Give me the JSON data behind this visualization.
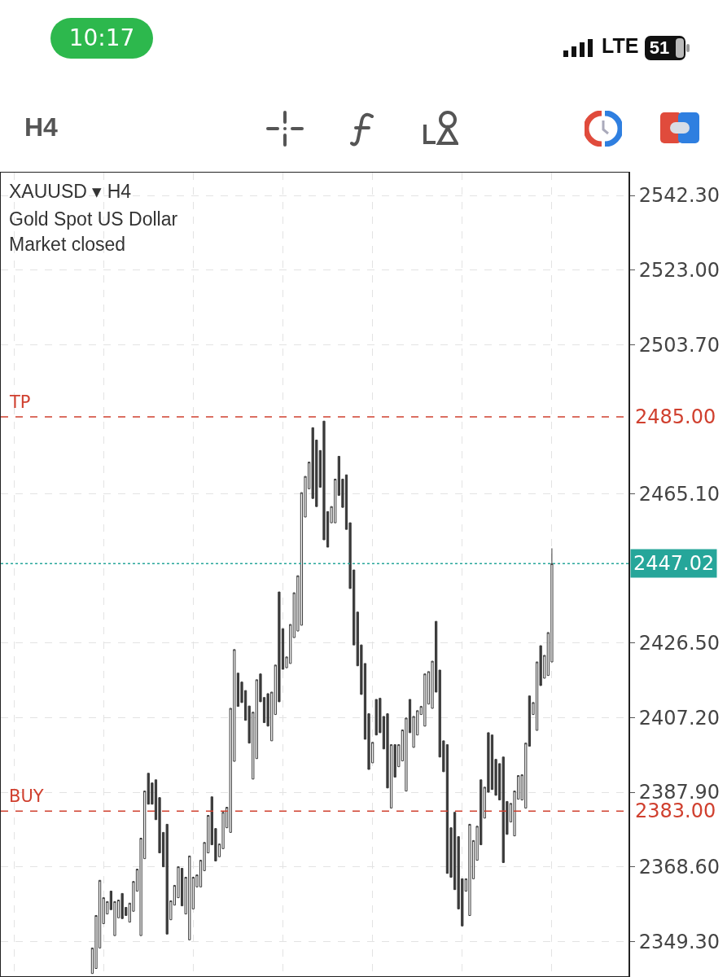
{
  "chart_data": {
    "type": "candlestick",
    "title": "XAUUSD ▾ H4",
    "subtitle": "Gold Spot US Dollar",
    "annotations": [
      "Market closed",
      "H4",
      "10:17",
      "LTE",
      "51",
      {
        "text": "TP",
        "y": 2485
      },
      {
        "text": "BUY",
        "y": 2383
      }
    ],
    "categories": [
      null,
      null,
      null,
      null,
      null,
      null,
      null,
      null,
      null,
      null,
      null,
      null,
      null,
      null,
      null,
      null,
      null,
      null,
      null,
      null,
      null,
      null,
      null,
      null,
      null,
      null,
      null,
      null,
      null,
      null,
      null,
      null,
      null,
      null,
      null,
      null,
      null,
      null,
      null,
      null,
      null,
      null,
      null,
      null,
      null,
      null,
      null,
      null,
      null,
      null,
      null,
      null,
      null,
      null,
      null,
      null,
      null,
      null,
      null,
      null,
      null,
      null,
      null,
      null,
      null,
      null,
      null,
      null,
      null,
      null,
      null,
      null,
      null,
      null,
      null,
      null,
      null,
      null,
      null,
      null,
      null,
      null,
      null,
      null,
      null,
      null,
      null,
      null,
      null,
      null,
      null,
      null,
      null,
      null,
      null,
      null,
      null,
      null,
      null,
      null,
      null,
      null,
      null,
      null,
      null,
      null,
      null,
      null,
      null,
      null,
      null,
      null,
      null,
      null,
      null,
      null,
      null,
      null,
      null,
      null,
      null,
      null,
      null,
      null,
      null,
      null,
      null,
      null,
      null,
      null,
      null,
      null,
      null,
      null,
      null,
      null,
      null,
      null,
      null,
      null,
      null,
      null,
      null,
      null,
      null,
      null,
      null,
      null,
      null,
      null,
      null,
      null,
      null,
      null,
      null,
      null,
      null,
      null,
      null,
      null,
      null,
      null,
      null,
      null,
      null,
      null,
      null,
      null
    ],
    "color": "#3a3a3a",
    "ohlc": [
      null,
      null,
      null,
      null,
      null,
      null,
      null,
      null,
      null,
      null,
      null,
      null,
      null,
      null,
      null,
      null,
      null,
      null,
      null,
      null,
      null,
      null,
      null,
      null,
      [
        2341.0,
        2347.6,
        2341.0,
        2347.6
      ],
      [
        2342.3,
        2356.0,
        2342.3,
        2356.0
      ],
      [
        2347.6,
        2365.1,
        2347.6,
        2365.1
      ],
      [
        2353.9,
        2360.6,
        2353.9,
        2360.6
      ],
      [
        2356.4,
        2359.6,
        2356.4,
        2359.6
      ],
      [
        2362.3,
        2362.3,
        2357.5,
        2357.5
      ],
      [
        2350.8,
        2359.6,
        2350.8,
        2359.6
      ],
      [
        2355.4,
        2360.0,
        2355.4,
        2360.0
      ],
      [
        2361.7,
        2361.7,
        2355.2,
        2355.2
      ],
      [
        2358.1,
        2358.1,
        2356.0,
        2356.0
      ],
      [
        2354.3,
        2359.2,
        2354.3,
        2359.2
      ],
      [
        2357.1,
        2364.8,
        2357.1,
        2364.8
      ],
      [
        2362.3,
        2368.0,
        2362.3,
        2368.0
      ],
      [
        2350.8,
        2376.0,
        2350.8,
        2376.0
      ],
      [
        2370.7,
        2388.2,
        2370.7,
        2388.2
      ],
      [
        2392.8,
        2392.8,
        2384.8,
        2384.8
      ],
      [
        2390.3,
        2390.3,
        2384.8,
        2384.8
      ],
      [
        2391.1,
        2391.1,
        2380.8,
        2380.8
      ],
      [
        2386.5,
        2386.5,
        2372.2,
        2372.2
      ],
      [
        2377.5,
        2377.5,
        2368.6,
        2368.6
      ],
      [
        2379.6,
        2379.6,
        2351.2,
        2351.2
      ],
      [
        2354.9,
        2359.8,
        2354.9,
        2359.8
      ],
      [
        2358.7,
        2363.8,
        2358.7,
        2363.8
      ],
      [
        2360.6,
        2368.6,
        2360.6,
        2368.6
      ],
      [
        2368.2,
        2368.2,
        2358.5,
        2358.5
      ],
      [
        2356.4,
        2365.9,
        2356.4,
        2365.9
      ],
      [
        2349.7,
        2371.4,
        2349.7,
        2371.4
      ],
      [
        2357.7,
        2365.9,
        2357.7,
        2365.9
      ],
      [
        2363.4,
        2366.5,
        2363.4,
        2366.5
      ],
      [
        2363.4,
        2370.3,
        2363.4,
        2370.3
      ],
      [
        2367.6,
        2374.9,
        2367.6,
        2374.9
      ],
      [
        2372.2,
        2381.9,
        2372.2,
        2381.9
      ],
      [
        2386.7,
        2386.7,
        2374.3,
        2374.3
      ],
      [
        2378.5,
        2378.5,
        2370.1,
        2370.1
      ],
      [
        2371.2,
        2374.5,
        2371.2,
        2374.5
      ],
      [
        2373.3,
        2382.7,
        2373.3,
        2382.7
      ],
      [
        2378.7,
        2384.0,
        2378.7,
        2384.0
      ],
      [
        2377.5,
        2409.6,
        2377.5,
        2409.6
      ],
      [
        2395.9,
        2424.8,
        2395.9,
        2424.8
      ],
      [
        2418.7,
        2418.7,
        2410.1,
        2410.1
      ],
      [
        2416.4,
        2416.4,
        2411.1,
        2411.1
      ],
      [
        2414.2,
        2414.2,
        2406.5,
        2406.5
      ],
      [
        2410.2,
        2410.2,
        2400.6,
        2400.6
      ],
      [
        2391.3,
        2408.6,
        2391.3,
        2408.6
      ],
      [
        2396.6,
        2417.0,
        2396.6,
        2417.0
      ],
      [
        2418.5,
        2418.5,
        2411.3,
        2411.3
      ],
      [
        2412.4,
        2412.4,
        2405.9,
        2405.9
      ],
      [
        2413.4,
        2413.4,
        2405.0,
        2405.0
      ],
      [
        2401.2,
        2413.8,
        2401.2,
        2413.8
      ],
      [
        2408.0,
        2420.8,
        2408.0,
        2420.8
      ],
      [
        2439.7,
        2439.7,
        2411.3,
        2411.3
      ],
      [
        2430.2,
        2430.2,
        2419.7,
        2419.7
      ],
      [
        2420.1,
        2422.9,
        2420.1,
        2422.9
      ],
      [
        2421.2,
        2431.3,
        2421.2,
        2431.3
      ],
      [
        2427.9,
        2439.5,
        2427.9,
        2439.5
      ],
      [
        2429.6,
        2443.9,
        2429.6,
        2443.9
      ],
      [
        2431.1,
        2465.4,
        2431.1,
        2465.4
      ],
      [
        2459.1,
        2469.6,
        2459.1,
        2469.6
      ],
      [
        2466.4,
        2473.3,
        2466.4,
        2473.3
      ],
      [
        2482.2,
        2482.2,
        2463.9,
        2463.9
      ],
      [
        2479.0,
        2479.0,
        2461.8,
        2461.8
      ],
      [
        2476.3,
        2476.3,
        2466.8,
        2466.8
      ],
      [
        2483.9,
        2483.9,
        2453.2,
        2453.2
      ],
      [
        2460.5,
        2460.5,
        2451.3,
        2451.3
      ],
      [
        2457.6,
        2461.8,
        2457.6,
        2461.8
      ],
      [
        2457.6,
        2468.9,
        2457.6,
        2468.9
      ],
      [
        2474.8,
        2474.8,
        2464.7,
        2464.7
      ],
      [
        2468.9,
        2468.9,
        2461.6,
        2461.6
      ],
      [
        2470.0,
        2470.0,
        2455.9,
        2455.9
      ],
      [
        2457.6,
        2457.6,
        2440.6,
        2440.6
      ],
      [
        2445.4,
        2445.4,
        2426.0,
        2426.0
      ],
      [
        2434.5,
        2434.5,
        2420.6,
        2420.6
      ],
      [
        2426.0,
        2426.0,
        2413.2,
        2413.2
      ],
      [
        2421.2,
        2421.2,
        2401.6,
        2401.6
      ],
      [
        2408.2,
        2408.2,
        2393.8,
        2393.8
      ],
      [
        2395.5,
        2400.8,
        2395.5,
        2400.8
      ],
      [
        2411.9,
        2411.9,
        2402.7,
        2402.7
      ],
      [
        2412.2,
        2412.2,
        2403.3,
        2403.3
      ],
      [
        2407.5,
        2407.5,
        2399.1,
        2399.1
      ],
      [
        2408.2,
        2408.2,
        2389.0,
        2389.0
      ],
      [
        2383.8,
        2400.2,
        2383.8,
        2400.2
      ],
      [
        2400.2,
        2400.2,
        2391.8,
        2391.8
      ],
      [
        2394.5,
        2400.2,
        2394.5,
        2400.2
      ],
      [
        2396.0,
        2404.0,
        2396.0,
        2404.0
      ],
      [
        2388.2,
        2407.1,
        2388.2,
        2407.1
      ],
      [
        2411.9,
        2411.9,
        2403.3,
        2403.3
      ],
      [
        2399.5,
        2407.5,
        2399.5,
        2407.5
      ],
      [
        2402.7,
        2409.0,
        2402.7,
        2409.0
      ],
      [
        2408.0,
        2410.1,
        2408.0,
        2410.1
      ],
      [
        2405.0,
        2418.5,
        2405.0,
        2418.5
      ],
      [
        2410.7,
        2419.1,
        2410.7,
        2419.1
      ],
      [
        2409.6,
        2421.8,
        2409.6,
        2421.8
      ],
      [
        2432.1,
        2432.1,
        2413.8,
        2413.8
      ],
      [
        2419.5,
        2419.5,
        2397.0,
        2397.0
      ],
      [
        2401.2,
        2401.2,
        2393.2,
        2393.2
      ],
      [
        2400.2,
        2400.2,
        2366.9,
        2366.9
      ],
      [
        2378.7,
        2378.7,
        2365.9,
        2365.9
      ],
      [
        2382.7,
        2382.7,
        2362.7,
        2362.7
      ],
      [
        2376.4,
        2376.4,
        2357.7,
        2357.7
      ],
      [
        2365.5,
        2365.5,
        2353.3,
        2353.3
      ],
      [
        2362.3,
        2365.5,
        2362.3,
        2365.5
      ],
      [
        2356.0,
        2379.6,
        2356.0,
        2379.6
      ],
      [
        2365.5,
        2375.4,
        2365.5,
        2375.4
      ],
      [
        2370.3,
        2379.1,
        2370.3,
        2379.1
      ],
      [
        2391.1,
        2391.1,
        2374.3,
        2374.3
      ],
      [
        2381.2,
        2389.2,
        2381.2,
        2389.2
      ],
      [
        2403.3,
        2403.3,
        2387.9,
        2387.9
      ],
      [
        2402.7,
        2402.7,
        2388.6,
        2388.6
      ],
      [
        2396.4,
        2396.4,
        2387.1,
        2387.1
      ],
      [
        2395.3,
        2395.3,
        2385.9,
        2385.9
      ],
      [
        2397.0,
        2397.0,
        2369.7,
        2369.7
      ],
      [
        2385.5,
        2385.5,
        2377.0,
        2377.0
      ],
      [
        2380.2,
        2385.0,
        2380.2,
        2385.0
      ],
      [
        2376.6,
        2388.2,
        2376.6,
        2388.2
      ],
      [
        2386.1,
        2392.2,
        2386.1,
        2392.2
      ],
      [
        2385.9,
        2392.4,
        2385.9,
        2392.4
      ],
      [
        2383.8,
        2400.6,
        2383.8,
        2400.6
      ],
      [
        2412.8,
        2412.8,
        2399.8,
        2399.8
      ],
      [
        2408.0,
        2411.1,
        2408.0,
        2411.1
      ],
      [
        2403.9,
        2421.6,
        2403.9,
        2421.6
      ],
      [
        2425.8,
        2425.8,
        2415.5,
        2415.5
      ],
      [
        2417.4,
        2423.3,
        2417.4,
        2423.3
      ],
      [
        2418.1,
        2429.2,
        2418.1,
        2429.2
      ],
      [
        2421.6,
        2451.0,
        2421.6,
        2447.02
      ],
      null,
      null,
      null,
      null,
      null,
      null,
      null,
      null,
      null,
      null,
      null,
      null,
      null,
      null,
      null,
      null,
      null,
      null,
      null,
      null
    ],
    "ylim": [
      2340.3,
      2548.2
    ],
    "yticks": [
      {
        "value": 2349.3,
        "label": "2349.30"
      },
      {
        "value": 2368.6,
        "label": "2368.60"
      },
      {
        "value": 2387.9,
        "label": "2387.90"
      },
      {
        "value": 2407.2,
        "label": "2407.20"
      },
      {
        "value": 2426.5,
        "label": "2426.50"
      },
      {
        "value": 2465.1,
        "label": "2465.10"
      },
      {
        "value": 2503.7,
        "label": "2503.70"
      },
      {
        "value": 2523.0,
        "label": "2523.00"
      },
      {
        "value": 2542.3,
        "label": "2542.30"
      }
    ],
    "ref_lines": [
      {
        "axis": "y",
        "value": 2485,
        "label": "2485.00",
        "color": "#d0402f",
        "line_style": "dashed"
      },
      {
        "axis": "y",
        "value": 2447.02,
        "label": "2447.02",
        "color": "#26a69a",
        "line_style": "dotted"
      },
      {
        "axis": "y",
        "value": 2383,
        "label": "2383.00",
        "color": "#d0402f",
        "line_style": "dashed"
      }
    ],
    "grid": true,
    "legend": false
  }
}
